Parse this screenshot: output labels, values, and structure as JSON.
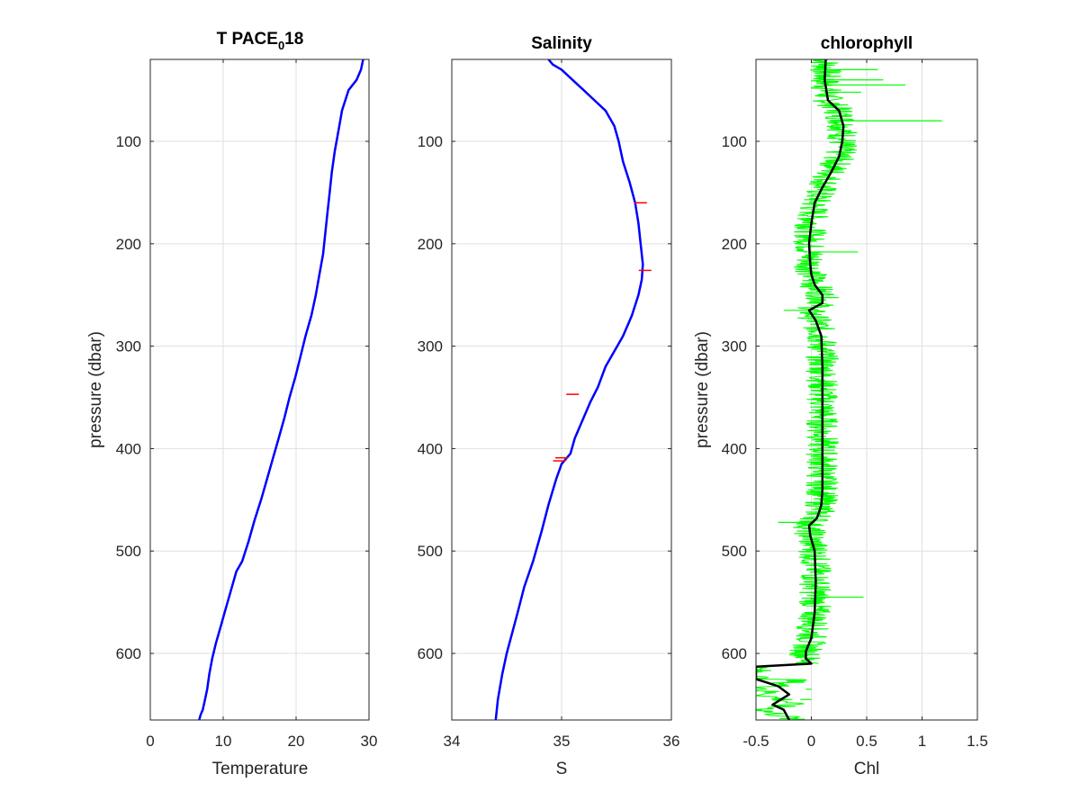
{
  "chart_data": [
    {
      "type": "line",
      "title": "T PACE",
      "title_subscript": "0",
      "title_suffix": "18",
      "xlabel": "Temperature",
      "ylabel": "pressure (dbar)",
      "xlim": [
        0,
        30
      ],
      "ylim": [
        20,
        665
      ],
      "y_reversed": true,
      "grid": true,
      "xticks": [
        0,
        10,
        20,
        30
      ],
      "yticks": [
        100,
        200,
        300,
        400,
        500,
        600
      ],
      "series": [
        {
          "color": "#0000ff",
          "x": [
            29.2,
            28.9,
            28.3,
            27.2,
            26.3,
            25.8,
            25.3,
            24.9,
            24.6,
            24.3,
            24.0,
            23.7,
            23.2,
            22.7,
            22.1,
            21.3,
            20.6,
            19.9,
            19.1,
            18.4,
            17.6,
            16.8,
            16.0,
            15.2,
            14.3,
            13.5,
            12.6,
            11.8,
            11.0,
            10.2,
            9.6,
            9.0,
            8.5,
            8.1,
            7.8,
            7.5,
            7.2,
            6.9,
            6.7
          ],
          "y": [
            20,
            30,
            40,
            50,
            70,
            90,
            110,
            130,
            150,
            170,
            190,
            210,
            230,
            250,
            270,
            290,
            310,
            330,
            350,
            370,
            390,
            410,
            430,
            450,
            470,
            490,
            510,
            520,
            540,
            560,
            575,
            590,
            605,
            620,
            635,
            645,
            655,
            660,
            665
          ]
        }
      ]
    },
    {
      "type": "line",
      "title": "Salinity",
      "xlabel": "S",
      "ylabel": "",
      "xlim": [
        34,
        36
      ],
      "ylim": [
        20,
        665
      ],
      "y_reversed": true,
      "grid": true,
      "xticks": [
        34,
        35,
        36
      ],
      "yticks": [
        100,
        200,
        300,
        400,
        500,
        600
      ],
      "series": [
        {
          "color": "#0000ff",
          "x": [
            34.88,
            34.92,
            35.0,
            35.1,
            35.2,
            35.3,
            35.4,
            35.48,
            35.52,
            35.56,
            35.62,
            35.67,
            35.7,
            35.72,
            35.74,
            35.73,
            35.7,
            35.64,
            35.56,
            35.48,
            35.4,
            35.33,
            35.26,
            35.2,
            35.12,
            35.08,
            35.0,
            34.95,
            34.88,
            34.82,
            34.74,
            34.66,
            34.6,
            34.55,
            34.5,
            34.46,
            34.42,
            34.4
          ],
          "y": [
            20,
            25,
            30,
            40,
            50,
            60,
            70,
            85,
            100,
            120,
            140,
            160,
            180,
            200,
            220,
            235,
            250,
            270,
            290,
            305,
            320,
            340,
            355,
            370,
            390,
            405,
            415,
            430,
            455,
            480,
            510,
            535,
            560,
            580,
            600,
            620,
            645,
            665
          ]
        },
        {
          "color": "#ff0000",
          "x": [
            35.72,
            35.76,
            35.1,
            35.0,
            34.98
          ],
          "y": [
            160,
            226,
            347,
            409,
            412
          ]
        }
      ]
    },
    {
      "type": "line",
      "title": "chlorophyll",
      "xlabel": "Chl",
      "ylabel": "pressure (dbar)",
      "xlim": [
        -0.5,
        1.5
      ],
      "ylim": [
        20,
        665
      ],
      "y_reversed": true,
      "grid": true,
      "xticks": [
        -0.5,
        0,
        0.5,
        1,
        1.5
      ],
      "yticks": [
        100,
        200,
        300,
        400,
        500,
        600
      ],
      "series": [
        {
          "name": "",
          "color": "#000000",
          "role": "smoothed",
          "x": [
            0.13,
            0.12,
            0.15,
            0.25,
            0.29,
            0.28,
            0.25,
            0.18,
            0.1,
            0.03,
            0.0,
            -0.02,
            -0.01,
            0.0,
            0.03,
            0.1,
            0.1,
            -0.02,
            0.04,
            0.09,
            0.1,
            0.1,
            0.1,
            0.1,
            0.09,
            0.07,
            0.05,
            -0.02,
            -0.01,
            0.03,
            0.04,
            0.03,
            0.0,
            -0.05,
            -0.05,
            0.0,
            -0.5,
            -0.5,
            -0.3,
            -0.2,
            -0.35,
            -0.25,
            -0.2
          ],
          "y": [
            20,
            40,
            60,
            70,
            85,
            100,
            115,
            130,
            145,
            160,
            180,
            200,
            220,
            230,
            240,
            250,
            258,
            265,
            275,
            290,
            320,
            360,
            400,
            440,
            455,
            462,
            468,
            475,
            485,
            500,
            530,
            560,
            585,
            598,
            605,
            610,
            613,
            625,
            632,
            640,
            650,
            655,
            665
          ]
        }
      ],
      "raw_band": {
        "color": "#00ff00",
        "center_x": [
          0.13,
          0.12,
          0.15,
          0.25,
          0.29,
          0.28,
          0.25,
          0.18,
          0.1,
          0.03,
          0.0,
          -0.02,
          -0.01,
          0.0,
          0.03,
          0.1,
          0.1,
          -0.02,
          0.04,
          0.09,
          0.1,
          0.1,
          0.1,
          0.1,
          0.09,
          0.07,
          0.05,
          -0.02,
          -0.01,
          0.03,
          0.04,
          0.03,
          0.0,
          -0.05,
          -0.05,
          0.0
        ],
        "center_y": [
          20,
          40,
          60,
          70,
          85,
          100,
          115,
          130,
          145,
          160,
          180,
          200,
          220,
          230,
          240,
          250,
          258,
          265,
          275,
          290,
          320,
          360,
          400,
          440,
          455,
          462,
          468,
          475,
          485,
          500,
          530,
          560,
          585,
          598,
          605,
          610
        ],
        "half_width": 0.15,
        "spikes": [
          {
            "y": 30,
            "x": 0.6
          },
          {
            "y": 40,
            "x": 0.65
          },
          {
            "y": 45,
            "x": 0.85
          },
          {
            "y": 52,
            "x": 0.45
          },
          {
            "y": 80,
            "x": 1.18
          },
          {
            "y": 208,
            "x": 0.42
          },
          {
            "y": 265,
            "x": -0.25
          },
          {
            "y": 472,
            "x": -0.3
          },
          {
            "y": 545,
            "x": 0.47
          },
          {
            "y": 635,
            "x": -0.05
          },
          {
            "y": 645,
            "x": -0.1
          }
        ]
      }
    }
  ]
}
